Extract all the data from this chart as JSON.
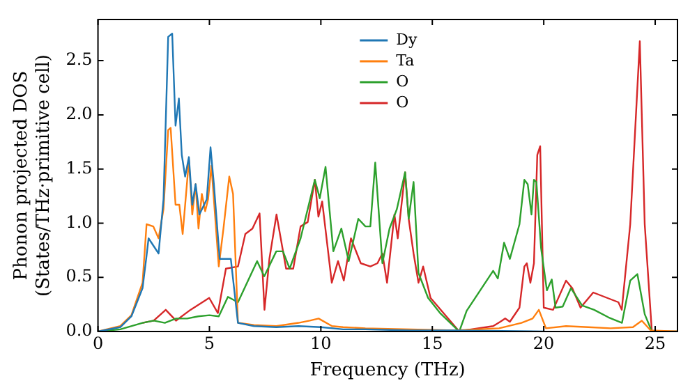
{
  "chart_data": {
    "type": "line",
    "xlabel": "Frequency (THz)",
    "ylabel": "Phonon projected DOS\n(States/THz·primitive cell)",
    "xlim": [
      0,
      26
    ],
    "ylim": [
      0,
      2.88
    ],
    "xticks": [
      0,
      5,
      10,
      15,
      20,
      25
    ],
    "yticks": [
      {
        "value": 0,
        "label": "0.0"
      },
      0.5,
      {
        "value": 1,
        "label": "1.0"
      },
      1.5,
      {
        "value": 2,
        "label": "2.0"
      },
      2.5
    ],
    "grid": false,
    "legend": "top",
    "marker": "none",
    "line_style": "solid",
    "series": [
      {
        "name": "Dy",
        "color": "#1f77b4",
        "x": [
          0,
          1,
          1.5,
          2,
          2.18,
          2.27,
          2.72,
          2.94,
          3.15,
          3.33,
          3.48,
          3.63,
          3.76,
          3.91,
          4.08,
          4.23,
          4.38,
          4.55,
          4.88,
          5.05,
          5.2,
          5.46,
          5.96,
          6.28,
          7,
          8,
          9,
          10,
          11,
          12,
          14,
          16,
          20
        ],
        "values": [
          0,
          0.04,
          0.14,
          0.4,
          0.7,
          0.86,
          0.72,
          1.22,
          2.72,
          2.75,
          1.9,
          2.15,
          1.63,
          1.43,
          1.61,
          1.17,
          1.36,
          1.08,
          1.22,
          1.7,
          1.36,
          0.67,
          0.67,
          0.08,
          0.05,
          0.04,
          0.05,
          0.04,
          0.02,
          0.02,
          0.01,
          0.01,
          0
        ]
      },
      {
        "name": "Ta",
        "color": "#ff7f0e",
        "x": [
          0,
          1,
          1.5,
          2,
          2.18,
          2.48,
          2.72,
          2.94,
          3.15,
          3.26,
          3.48,
          3.65,
          3.8,
          4.08,
          4.23,
          4.38,
          4.51,
          4.66,
          4.81,
          4.94,
          5.09,
          5.42,
          5.63,
          5.89,
          6.06,
          6.28,
          7,
          8,
          9,
          9.5,
          9.9,
          10.5,
          11,
          12,
          14,
          16,
          18,
          19,
          19.5,
          19.78,
          20.1,
          21,
          22,
          23,
          24,
          24.4,
          24.8,
          26
        ],
        "values": [
          0,
          0.05,
          0.15,
          0.45,
          0.99,
          0.97,
          0.86,
          1.13,
          1.86,
          1.88,
          1.17,
          1.17,
          0.9,
          1.58,
          1.08,
          1.36,
          0.95,
          1.27,
          1.11,
          1.22,
          1.53,
          0.6,
          0.95,
          1.43,
          1.27,
          0.08,
          0.06,
          0.05,
          0.08,
          0.1,
          0.12,
          0.05,
          0.04,
          0.03,
          0.02,
          0.01,
          0.03,
          0.08,
          0.12,
          0.2,
          0.03,
          0.05,
          0.04,
          0.03,
          0.04,
          0.1,
          0.01,
          0
        ]
      },
      {
        "name": "O",
        "color": "#2ca02c",
        "x": [
          0,
          1,
          2,
          2.5,
          3,
          3.5,
          4,
          4.5,
          5,
          5.42,
          5.83,
          6.28,
          7.14,
          7.46,
          8,
          8.3,
          8.6,
          9.09,
          9.73,
          9.95,
          10.21,
          10.56,
          10.92,
          11.25,
          11.68,
          12.0,
          12.22,
          12.44,
          12.76,
          13.08,
          13.41,
          13.78,
          13.94,
          14.16,
          14.38,
          14.81,
          15.35,
          16.21,
          16.54,
          17.73,
          17.94,
          18.22,
          18.48,
          18.91,
          19.13,
          19.28,
          19.45,
          19.56,
          19.67,
          19.88,
          20.14,
          20.36,
          20.53,
          20.85,
          21.22,
          21.72,
          22.26,
          22.91,
          23.51,
          23.88,
          24.2,
          24.53,
          24.85,
          26
        ],
        "values": [
          0,
          0.02,
          0.08,
          0.1,
          0.08,
          0.12,
          0.12,
          0.14,
          0.15,
          0.14,
          0.32,
          0.27,
          0.65,
          0.51,
          0.74,
          0.74,
          0.58,
          0.86,
          1.4,
          1.23,
          1.52,
          0.74,
          0.95,
          0.65,
          1.04,
          0.97,
          0.97,
          1.56,
          0.63,
          0.95,
          1.13,
          1.47,
          1.04,
          1.38,
          0.54,
          0.31,
          0.17,
          0,
          0.19,
          0.56,
          0.49,
          0.82,
          0.67,
          0.99,
          1.4,
          1.36,
          1.08,
          1.4,
          1.38,
          0.77,
          0.38,
          0.48,
          0.22,
          0.23,
          0.4,
          0.24,
          0.2,
          0.13,
          0.08,
          0.47,
          0.53,
          0.16,
          0,
          0
        ]
      },
      {
        "name": "O",
        "color": "#d62728",
        "x": [
          2,
          2.5,
          3.04,
          3.5,
          4.15,
          4.99,
          5.38,
          5.74,
          6.28,
          6.61,
          6.93,
          7.25,
          7.47,
          7.69,
          8.01,
          8.44,
          8.76,
          9.09,
          9.41,
          9.73,
          9.89,
          10.06,
          10.49,
          10.77,
          11.03,
          11.35,
          11.79,
          12.22,
          12.54,
          12.76,
          12.97,
          13.3,
          13.45,
          13.78,
          13.94,
          14.16,
          14.38,
          14.59,
          14.92,
          16.21,
          16.43,
          17.73,
          18.05,
          18.27,
          18.48,
          18.91,
          19.13,
          19.24,
          19.4,
          19.56,
          19.71,
          19.84,
          20.0,
          20.42,
          21.0,
          21.28,
          21.65,
          22.22,
          23.35,
          23.5,
          23.88,
          24.31,
          24.53,
          24.85,
          26
        ],
        "values": [
          0.08,
          0.1,
          0.2,
          0.1,
          0.2,
          0.31,
          0.17,
          0.58,
          0.6,
          0.9,
          0.95,
          1.09,
          0.2,
          0.67,
          1.08,
          0.58,
          0.58,
          0.97,
          1.01,
          1.4,
          1.06,
          1.2,
          0.45,
          0.65,
          0.47,
          0.86,
          0.63,
          0.6,
          0.63,
          0.72,
          0.45,
          1.08,
          0.86,
          1.47,
          1.04,
          0.72,
          0.45,
          0.6,
          0.31,
          0,
          0.01,
          0.05,
          0.09,
          0.12,
          0.09,
          0.22,
          0.6,
          0.63,
          0.45,
          0.63,
          1.63,
          1.71,
          0.22,
          0.2,
          0.47,
          0.4,
          0.22,
          0.36,
          0.27,
          0.2,
          0.99,
          2.68,
          0.99,
          0,
          0
        ]
      }
    ]
  }
}
